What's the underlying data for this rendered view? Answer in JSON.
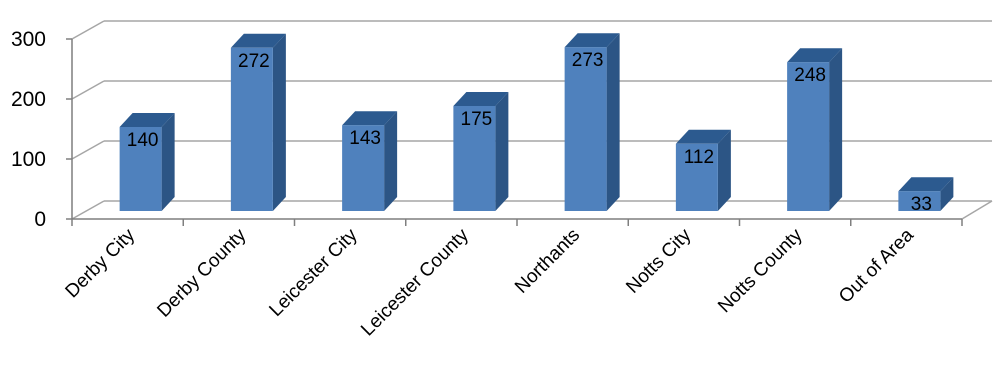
{
  "chart_data": {
    "type": "bar",
    "title": "",
    "xlabel": "",
    "ylabel": "",
    "categories": [
      "Derby City",
      "Derby County",
      "Leicester City",
      "Leicester County",
      "Northants",
      "Notts City",
      "Notts County",
      "Out of Area"
    ],
    "values": [
      140,
      272,
      143,
      175,
      273,
      112,
      248,
      33
    ],
    "ylim": [
      0,
      300
    ],
    "yticks": [
      0,
      100,
      200,
      300
    ],
    "grid": true,
    "legend": "none",
    "style": "3d-column",
    "colors": {
      "bar_front": "#4f81bd",
      "bar_side": "#2c5585",
      "bar_top": "#2c5a8f",
      "grid": "#a6a6a6"
    }
  }
}
